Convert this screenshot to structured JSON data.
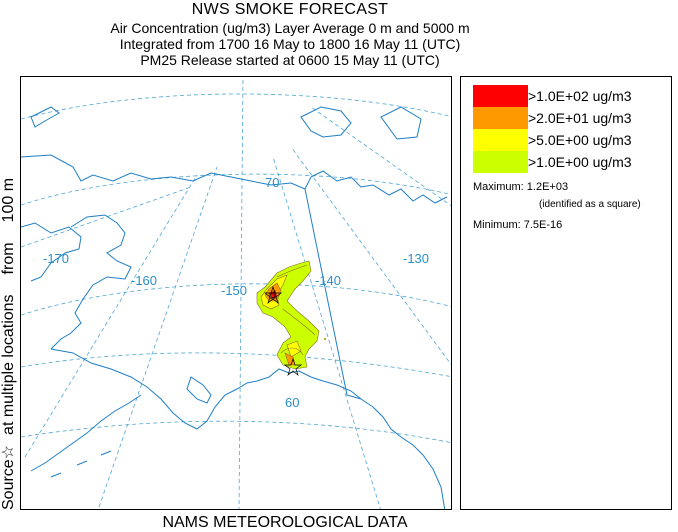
{
  "title": {
    "main": "NWS SMOKE FORECAST",
    "line1": "Air Concentration (ug/m3) Layer Average    0 m and  5000 m",
    "line2": "Integrated from 1700 16 May to 1800 16 May 11 (UTC)",
    "line3": "PM25 Release started at 0600 15 May 11 (UTC)"
  },
  "side_label": {
    "part1": "Source",
    "star": "☆",
    "part2": "at multiple locations",
    "part3": "from",
    "part4": "100 m"
  },
  "footer": "NAMS METEOROLOGICAL DATA",
  "map": {
    "longitude_labels": [
      "-170",
      "-160",
      "-150",
      "-140",
      "-130"
    ],
    "latitude_labels": [
      "70",
      "60"
    ],
    "graticule_color": "#4fa6d6",
    "coast_color": "#1f7fc4",
    "plume": {
      "colors": {
        "level1": "#ccff00",
        "level2": "#ffff00",
        "level3": "#ff9900",
        "level4": "#ff0000"
      },
      "contour_color": "#8a6a2a",
      "source_marker": "star-icon",
      "maximum_marker": "square-icon"
    }
  },
  "legend": {
    "levels": [
      {
        "label": ">1.0E+02 ug/m3",
        "color": "#ff0000"
      },
      {
        "label": ">2.0E+01 ug/m3",
        "color": "#ff9900"
      },
      {
        "label": ">5.0E+00 ug/m3",
        "color": "#ffff00"
      },
      {
        "label": ">1.0E+00 ug/m3",
        "color": "#ccff00"
      }
    ],
    "maximum_label": "Maximum: 1.2E+03",
    "maximum_note": "(identified as a square)",
    "minimum_label": "Minimum: 7.5E-16"
  }
}
